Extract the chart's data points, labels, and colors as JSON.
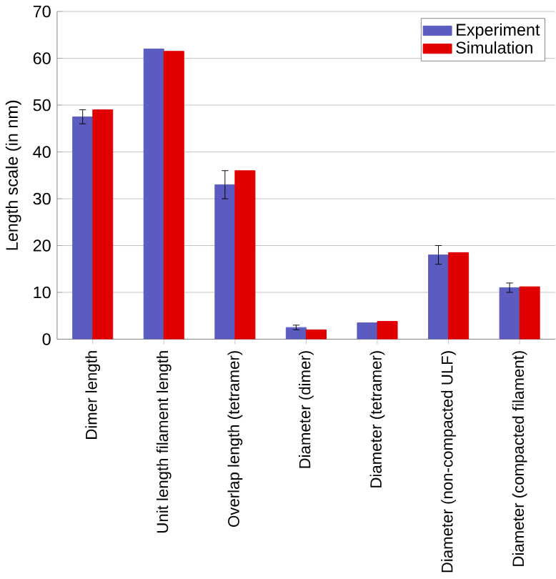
{
  "chart_data": {
    "type": "bar",
    "ylabel": "Length scale (in nm)",
    "categories": [
      "Dimer length",
      "Unit length filament length",
      "Overlap length (tetramer)",
      "Diameter (dimer)",
      "Diameter (tetramer)",
      "Diameter (non-compacted ULF)",
      "Diameter (compacted filament)"
    ],
    "series": [
      {
        "name": "Experiment",
        "color": "#5c5cc0",
        "values": [
          47.5,
          62,
          33,
          2.5,
          3.5,
          18,
          11
        ],
        "errors": [
          1.5,
          null,
          3,
          0.5,
          null,
          2,
          1
        ]
      },
      {
        "name": "Simulation",
        "color": "#e00000",
        "values": [
          49,
          61.5,
          36,
          2,
          3.8,
          18.5,
          11.2
        ]
      }
    ],
    "ylim": [
      0,
      70
    ],
    "yticks": [
      0,
      10,
      20,
      30,
      40,
      50,
      60,
      70
    ],
    "grid": "y",
    "legend": "top right"
  }
}
